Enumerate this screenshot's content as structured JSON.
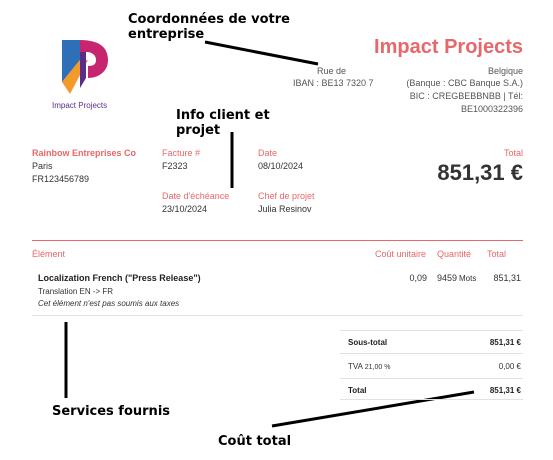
{
  "annotations": {
    "company_info": "Coordonnées de votre entreprise",
    "client_info": "Info client et projet",
    "services": "Services fournis",
    "total": "Coût total"
  },
  "company": {
    "logo_text": "Impact Projects",
    "name": "Impact Projects",
    "address_left": "Rue de",
    "address_right": "Belgique",
    "iban": "IBAN : BE13 7320 7",
    "bank": "(Banque : CBC Banque S.A.)",
    "bic": "BIC : CREGBEBBNBB | Tél:",
    "vat": "BE1000322396"
  },
  "client": {
    "name": "Rainbow Entreprises Co",
    "city": "Paris",
    "vat": "FR123456789"
  },
  "invoice": {
    "number_label": "Facture #",
    "number": "F2323",
    "date_label": "Date",
    "date": "08/10/2024",
    "due_label": "Date d'échéance",
    "due": "23/10/2024",
    "pm_label": "Chef de projet",
    "pm": "Julia Resinov",
    "total_label": "Total",
    "total": "851,31 €"
  },
  "table": {
    "headers": {
      "item": "Élément",
      "unit_cost": "Coût unitaire",
      "quantity": "Quantité",
      "total": "Total"
    },
    "rows": [
      {
        "title": "Localization French (\"Press Release\")",
        "sub": "Translation EN -> FR",
        "note": "Cet élément n'est pas soumis aux taxes",
        "unit": "0,09",
        "qty": "9459",
        "qty_unit": "Mots",
        "total": "851,31"
      }
    ]
  },
  "summary": {
    "subtotal_label": "Sous-total",
    "subtotal": "851,31 €",
    "tax_label": "TVA",
    "tax_rate": "21,00 %",
    "tax": "0,00 €",
    "total_label": "Total",
    "total": "851,31 €"
  },
  "colors": {
    "accent": "#e8676a",
    "logo_blue": "#2f6fb8",
    "logo_orange": "#f39a2b",
    "logo_magenta": "#c7256f",
    "logo_purple": "#5b2d86"
  }
}
